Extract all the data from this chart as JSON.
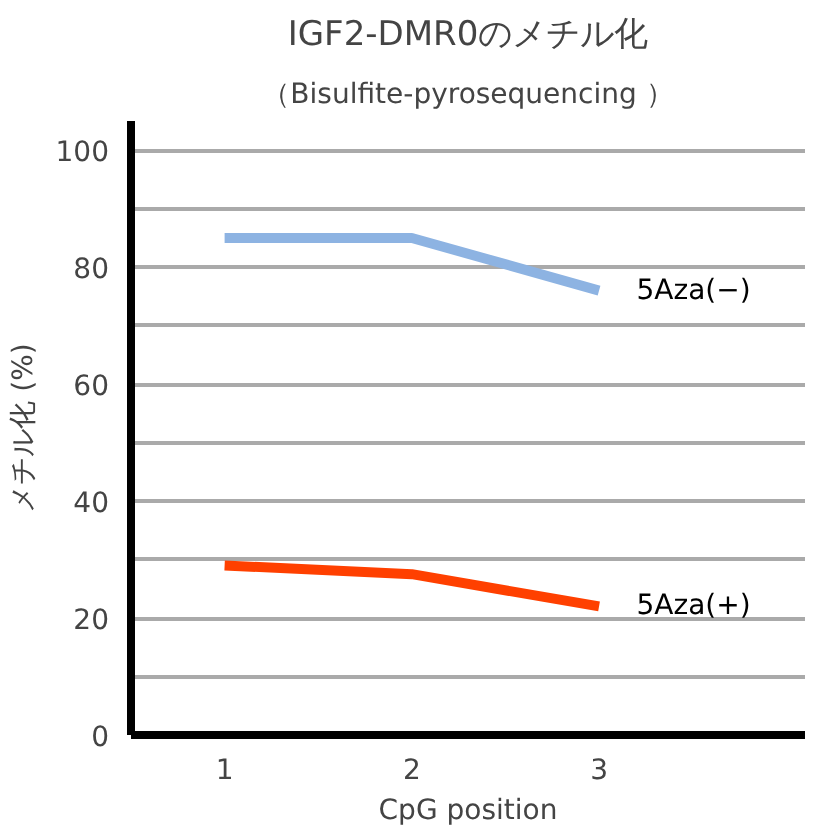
{
  "chart_data": {
    "type": "line",
    "title": "IGF2-DMR0のメチル化",
    "subtitle": "（Bisulfite-pyrosequencing ）",
    "xlabel": "CpG position",
    "ylabel": "メチル化 (%)",
    "categories": [
      "1",
      "2",
      "3"
    ],
    "series": [
      {
        "name": "5Aza(−)",
        "color": "#8db3e2",
        "values": [
          85,
          85,
          76
        ]
      },
      {
        "name": "5Aza(+)",
        "color": "#ff4000",
        "values": [
          29,
          27.5,
          22
        ]
      }
    ],
    "ylim": [
      0,
      105
    ],
    "yticks": [
      0,
      {
        "value": 10,
        "label": null
      },
      20,
      {
        "value": 30,
        "label": null
      },
      40,
      {
        "value": 50,
        "label": null
      },
      60,
      {
        "value": 70,
        "label": null
      },
      80,
      {
        "value": 90,
        "label": null
      },
      100
    ],
    "grid": "y",
    "legend": false,
    "marker": "none",
    "line_style": "solid"
  }
}
